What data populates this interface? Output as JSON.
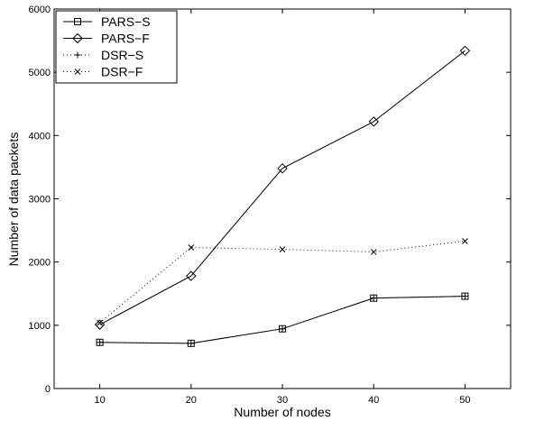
{
  "chart_data": {
    "type": "line",
    "title": "",
    "xlabel": "Number of nodes",
    "ylabel": "Number of data packets",
    "x": [
      10,
      20,
      30,
      40,
      50
    ],
    "xlim": [
      5,
      55
    ],
    "ylim": [
      0,
      6000
    ],
    "xticks": [
      10,
      20,
      30,
      40,
      50
    ],
    "yticks": [
      0,
      1000,
      2000,
      3000,
      4000,
      5000,
      6000
    ],
    "grid": false,
    "legend_position": "top-left",
    "series": [
      {
        "name": "PARS−S",
        "values": [
          730,
          715,
          945,
          1430,
          1460
        ],
        "line": "solid",
        "marker": "square",
        "color": "#000000"
      },
      {
        "name": "PARS−F",
        "values": [
          1010,
          1780,
          3480,
          4220,
          5340
        ],
        "line": "solid",
        "marker": "diamond",
        "color": "#000000"
      },
      {
        "name": "DSR−S",
        "values": [
          730,
          715,
          945,
          1430,
          1460
        ],
        "line": "dotted",
        "marker": "plus",
        "color": "#000000"
      },
      {
        "name": "DSR−F",
        "values": [
          1040,
          2230,
          2200,
          2160,
          2330
        ],
        "line": "dotted",
        "marker": "x",
        "color": "#000000"
      }
    ]
  }
}
